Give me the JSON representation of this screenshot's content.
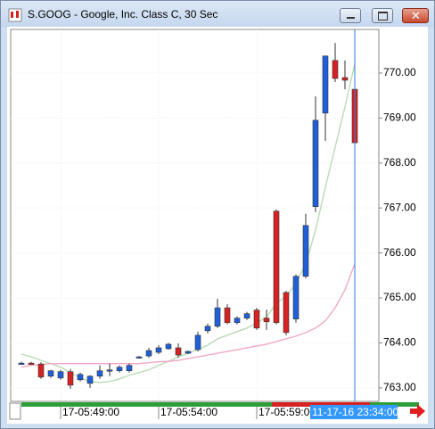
{
  "window_title": "S.GOOG - Google, Inc. Class C, 30 Sec",
  "chart_data": {
    "type": "candlestick",
    "categories": [
      null,
      null,
      null,
      null,
      "17-05:49:00",
      null,
      null,
      null,
      null,
      null,
      null,
      null,
      null,
      null,
      "17-05:54:00",
      null,
      null,
      null,
      null,
      null,
      null,
      null,
      null,
      null,
      "17-05:59:00",
      null,
      null,
      null,
      null,
      null,
      null,
      null,
      null,
      null,
      null
    ],
    "cursor_label": "11-17-16 23:34:00",
    "open": [
      763.55,
      763.55,
      763.53,
      763.26,
      763.22,
      763.36,
      763.18,
      763.1,
      763.26,
      763.38,
      763.38,
      763.38,
      763.69,
      763.71,
      763.79,
      763.87,
      763.89,
      763.77,
      763.85,
      764.27,
      764.37,
      764.78,
      764.45,
      764.55,
      764.73,
      764.55,
      766.93,
      765.12,
      764.53,
      765.48,
      767.03,
      769.11,
      770.28,
      769.9,
      769.64
    ],
    "high": [
      763.58,
      763.58,
      763.57,
      763.4,
      763.4,
      763.42,
      763.34,
      763.28,
      763.5,
      763.54,
      763.5,
      763.54,
      763.71,
      763.89,
      763.95,
      764.0,
      763.99,
      763.83,
      764.25,
      764.43,
      764.98,
      764.86,
      764.59,
      764.69,
      764.78,
      764.74,
      766.97,
      765.16,
      765.52,
      766.87,
      769.48,
      770.38,
      770.67,
      770.28,
      769.84
    ],
    "low": [
      763.52,
      763.52,
      763.2,
      763.22,
      763.18,
      762.98,
      763.14,
      763.0,
      763.2,
      763.26,
      763.34,
      763.34,
      763.67,
      763.67,
      763.75,
      763.85,
      763.67,
      763.75,
      763.81,
      764.21,
      764.33,
      764.41,
      764.41,
      764.51,
      764.29,
      764.29,
      764.41,
      764.17,
      764.45,
      765.44,
      766.91,
      768.49,
      769.8,
      769.64,
      768.29
    ],
    "close": [
      763.55,
      763.53,
      763.24,
      763.38,
      763.36,
      763.06,
      763.3,
      763.26,
      763.38,
      763.4,
      763.46,
      763.5,
      763.69,
      763.83,
      763.89,
      763.97,
      763.73,
      763.81,
      764.17,
      764.37,
      764.78,
      764.45,
      764.55,
      764.65,
      764.33,
      764.47,
      764.45,
      764.23,
      765.48,
      766.61,
      768.95,
      770.38,
      769.88,
      769.84,
      768.45
    ],
    "up_color": "#1f5fd8",
    "down_color": "#d62222",
    "overlays": [
      {
        "color": "#b9dcb4",
        "values": [
          763.75,
          763.69,
          763.61,
          763.54,
          763.46,
          763.34,
          763.22,
          763.14,
          763.12,
          763.14,
          763.2,
          763.28,
          763.34,
          763.4,
          763.5,
          763.59,
          763.69,
          763.77,
          763.85,
          763.95,
          764.09,
          764.17,
          764.25,
          764.33,
          764.45,
          764.57,
          764.88,
          765.04,
          765.32,
          765.76,
          766.51,
          767.46,
          768.35,
          769.25,
          770.2
        ]
      },
      {
        "color": "#f2a8c8",
        "values": [
          763.46,
          763.5,
          763.52,
          763.54,
          763.54,
          763.54,
          763.54,
          763.54,
          763.54,
          763.54,
          763.54,
          763.54,
          763.54,
          763.56,
          763.58,
          763.59,
          763.61,
          763.65,
          763.69,
          763.73,
          763.77,
          763.81,
          763.85,
          763.89,
          763.93,
          763.97,
          764.03,
          764.09,
          764.15,
          764.23,
          764.33,
          764.49,
          764.78,
          765.18,
          765.76
        ]
      }
    ],
    "ylim": [
      762.7,
      770.97
    ],
    "yticks": [
      {
        "value": 763,
        "label": "763.00"
      },
      {
        "value": 764,
        "label": "764.00"
      },
      {
        "value": 765,
        "label": "765.00"
      },
      {
        "value": 766,
        "label": "766.00"
      },
      {
        "value": 767,
        "label": "767.00"
      },
      {
        "value": 768,
        "label": "768.00"
      },
      {
        "value": 769,
        "label": "769.00"
      },
      {
        "value": 770,
        "label": "770.00"
      }
    ],
    "grid": true
  }
}
